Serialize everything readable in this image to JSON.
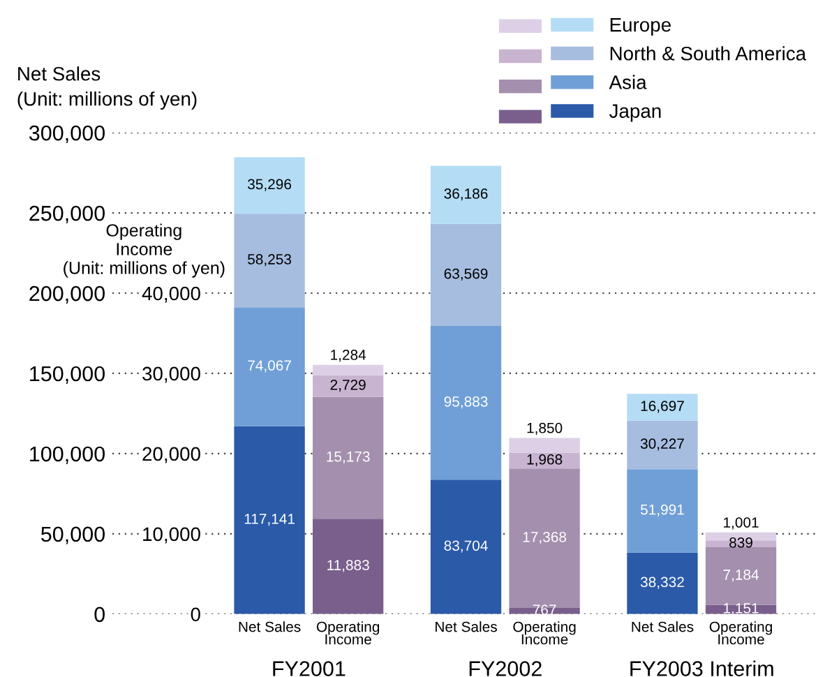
{
  "chart_data": {
    "type": "bar",
    "stacked": true,
    "categories": [
      "FY2001",
      "FY2002",
      "FY2003 Interim"
    ],
    "ylabel": "Net Sales\n(Unit: millions of yen)",
    "y2label": "Operating\nIncome\n(Unit: millions of yen)",
    "annotations": [
      "Net Sales",
      "Operating\nIncome"
    ],
    "ylim": [
      0,
      300000
    ],
    "yticks": [
      {
        "value": 0,
        "label": "0"
      },
      {
        "value": 50000,
        "label": "50,000"
      },
      {
        "value": 100000,
        "label": "100,000"
      },
      {
        "value": 150000,
        "label": "150,000"
      },
      {
        "value": 200000,
        "label": "200,000"
      },
      {
        "value": 250000,
        "label": "250,000"
      },
      {
        "value": 300000,
        "label": "300,000"
      }
    ],
    "y2lim": [
      0,
      60000
    ],
    "y2ticks": [
      {
        "value": 0,
        "label": "0"
      },
      {
        "value": 10000,
        "label": "10,000"
      },
      {
        "value": 20000,
        "label": "20,000"
      },
      {
        "value": 30000,
        "label": "30,000"
      },
      {
        "value": 40000,
        "label": "40,000"
      }
    ],
    "grid": "y",
    "legend": "top right",
    "series": [
      {
        "name": "Japan",
        "color": "#2a5aa8",
        "values": [
          117141,
          83704,
          38332
        ],
        "value_labels": [
          "117,141",
          "83,704",
          "38,332"
        ]
      },
      {
        "name": "Asia",
        "color": "#6f9fd6",
        "values": [
          74067,
          95883,
          51991
        ],
        "value_labels": [
          "74,067",
          "95,883",
          "51,991"
        ]
      },
      {
        "name": "North & South America",
        "color": "#a6bde0",
        "values": [
          58253,
          63569,
          30227
        ],
        "value_labels": [
          "58,253",
          "63,569",
          "30,227"
        ]
      },
      {
        "name": "Europe",
        "color": "#b4dcf5",
        "values": [
          35296,
          36186,
          16697
        ],
        "value_labels": [
          "35,296",
          "36,186",
          "16,697"
        ]
      },
      {
        "axis": "y2",
        "color": "#7a5f8c",
        "values": [
          11883,
          767,
          1151
        ],
        "value_labels": [
          "11,883",
          "767",
          "1,151"
        ]
      },
      {
        "axis": "y2",
        "color": "#a48fae",
        "values": [
          15173,
          17368,
          7184
        ],
        "value_labels": [
          "15,173",
          "17,368",
          "7,184"
        ]
      },
      {
        "axis": "y2",
        "color": "#c8b4d0",
        "values": [
          2729,
          1968,
          839
        ],
        "value_labels": [
          "2,729",
          "1,968",
          "839"
        ]
      },
      {
        "axis": "y2",
        "color": "#ddd0e6",
        "values": [
          1284,
          1850,
          1001
        ],
        "value_labels": [
          "1,284",
          "1,850",
          "1,001"
        ]
      }
    ]
  }
}
